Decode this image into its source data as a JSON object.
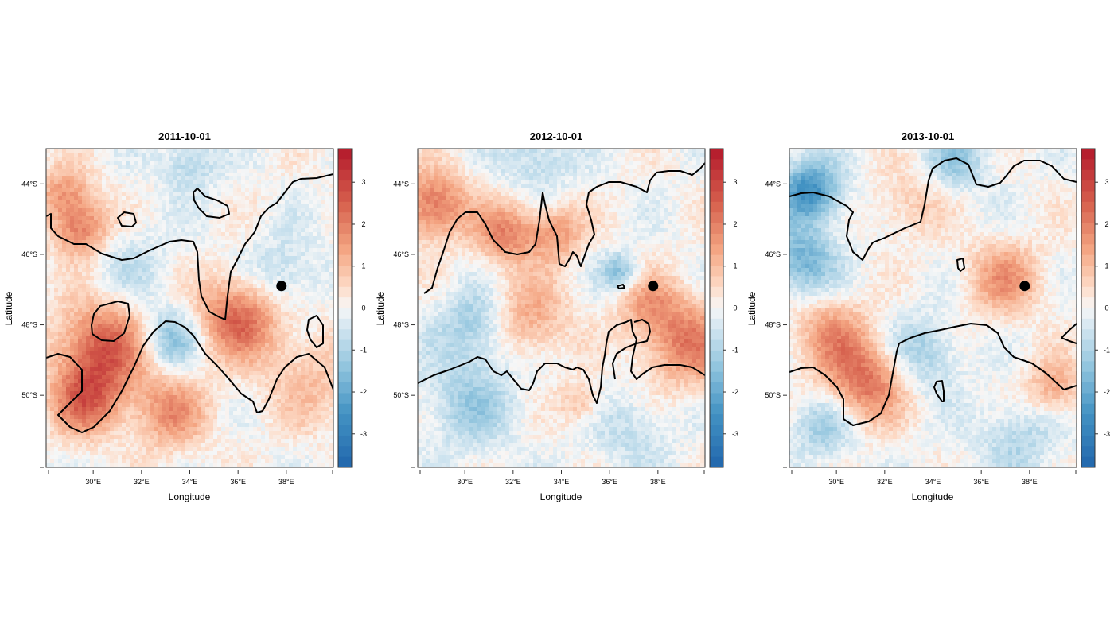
{
  "panels": [
    {
      "title": "2011-10-01",
      "xlabel": "Longitude",
      "ylabel": "Latitude",
      "xticks": [
        "30°E",
        "32°E",
        "34°E",
        "36°E",
        "38°E"
      ],
      "yticks": [
        "44°S",
        "46°S",
        "48°S",
        "50°S"
      ],
      "colorbar_ticks": [
        "3",
        "2",
        "1",
        "0",
        "-1",
        "-2",
        "-3"
      ],
      "blobs": [
        {
          "lon": 29.5,
          "lat": -45.3,
          "r": 0.9,
          "v": 2.0
        },
        {
          "lon": 28.8,
          "lat": -44.3,
          "r": 0.9,
          "v": 1.5
        },
        {
          "lon": 30.4,
          "lat": -48.7,
          "r": 1.5,
          "v": 2.6
        },
        {
          "lon": 29.7,
          "lat": -50.2,
          "r": 1.1,
          "v": 2.0
        },
        {
          "lon": 36.0,
          "lat": -47.8,
          "r": 1.3,
          "v": 2.4
        },
        {
          "lon": 33.2,
          "lat": -48.4,
          "r": 1.0,
          "v": -1.6
        },
        {
          "lon": 33.2,
          "lat": -50.5,
          "r": 1.2,
          "v": 1.6
        },
        {
          "lon": 37.8,
          "lat": -46.6,
          "r": 1.2,
          "v": -0.9
        },
        {
          "lon": 34.0,
          "lat": -43.4,
          "r": 0.9,
          "v": -1.0
        },
        {
          "lon": 39.0,
          "lat": -49.5,
          "r": 1.6,
          "v": 0.9
        },
        {
          "lon": 31.5,
          "lat": -46.3,
          "r": 1.3,
          "v": -0.6
        }
      ],
      "marker": {
        "lon": 37.8,
        "lat": -46.9
      }
    },
    {
      "title": "2012-10-01",
      "xlabel": "Longitude",
      "ylabel": "Latitude",
      "xticks": [
        "30°E",
        "32°E",
        "34°E",
        "36°E",
        "38°E"
      ],
      "yticks": [
        "44°S",
        "46°S",
        "48°S",
        "50°S"
      ],
      "colorbar_ticks": [
        "3",
        "2",
        "1",
        "0",
        "-1",
        "-2",
        "-3"
      ],
      "blobs": [
        {
          "lon": 28.7,
          "lat": -44.6,
          "r": 1.1,
          "v": 2.2
        },
        {
          "lon": 31.7,
          "lat": -45.4,
          "r": 1.0,
          "v": 1.8
        },
        {
          "lon": 33.8,
          "lat": -45.4,
          "r": 0.9,
          "v": 1.5
        },
        {
          "lon": 32.6,
          "lat": -47.8,
          "r": 1.3,
          "v": 1.4
        },
        {
          "lon": 39.2,
          "lat": -48.5,
          "r": 1.4,
          "v": 2.0
        },
        {
          "lon": 37.6,
          "lat": -47.4,
          "r": 1.0,
          "v": 1.2
        },
        {
          "lon": 30.5,
          "lat": -48.0,
          "r": 1.2,
          "v": -1.3
        },
        {
          "lon": 36.4,
          "lat": -46.5,
          "r": 0.6,
          "v": -1.5
        },
        {
          "lon": 30.2,
          "lat": -50.2,
          "r": 1.5,
          "v": -1.1
        },
        {
          "lon": 33.0,
          "lat": -43.2,
          "r": 1.2,
          "v": -0.9
        },
        {
          "lon": 37.0,
          "lat": -51.0,
          "r": 1.3,
          "v": -0.7
        },
        {
          "lon": 34.8,
          "lat": -50.2,
          "r": 0.7,
          "v": 1.0
        }
      ],
      "marker": {
        "lon": 37.8,
        "lat": -46.9
      }
    },
    {
      "title": "2013-10-01",
      "xlabel": "Longitude",
      "ylabel": "Latitude",
      "xticks": [
        "30°E",
        "32°E",
        "34°E",
        "36°E",
        "38°E"
      ],
      "yticks": [
        "44°S",
        "46°S",
        "48°S",
        "50°S"
      ],
      "colorbar_ticks": [
        "3",
        "2",
        "1",
        "0",
        "-1",
        "-2",
        "-3"
      ],
      "blobs": [
        {
          "lon": 28.9,
          "lat": -44.2,
          "r": 1.0,
          "v": -2.6
        },
        {
          "lon": 28.6,
          "lat": -46.2,
          "r": 1.1,
          "v": -1.8
        },
        {
          "lon": 31.2,
          "lat": -49.6,
          "r": 1.3,
          "v": 2.2
        },
        {
          "lon": 29.8,
          "lat": -48.2,
          "r": 1.2,
          "v": 1.4
        },
        {
          "lon": 37.0,
          "lat": -46.7,
          "r": 1.2,
          "v": 1.5
        },
        {
          "lon": 33.5,
          "lat": -48.8,
          "r": 1.2,
          "v": -1.2
        },
        {
          "lon": 35.0,
          "lat": -43.3,
          "r": 1.0,
          "v": -1.2
        },
        {
          "lon": 39.0,
          "lat": -49.8,
          "r": 0.9,
          "v": 1.4
        },
        {
          "lon": 37.5,
          "lat": -51.2,
          "r": 1.3,
          "v": -0.9
        },
        {
          "lon": 29.5,
          "lat": -50.9,
          "r": 1.0,
          "v": -1.2
        },
        {
          "lon": 33.0,
          "lat": -44.6,
          "r": 1.1,
          "v": 0.8
        }
      ],
      "marker": {
        "lon": 37.8,
        "lat": -46.9
      }
    }
  ]
}
